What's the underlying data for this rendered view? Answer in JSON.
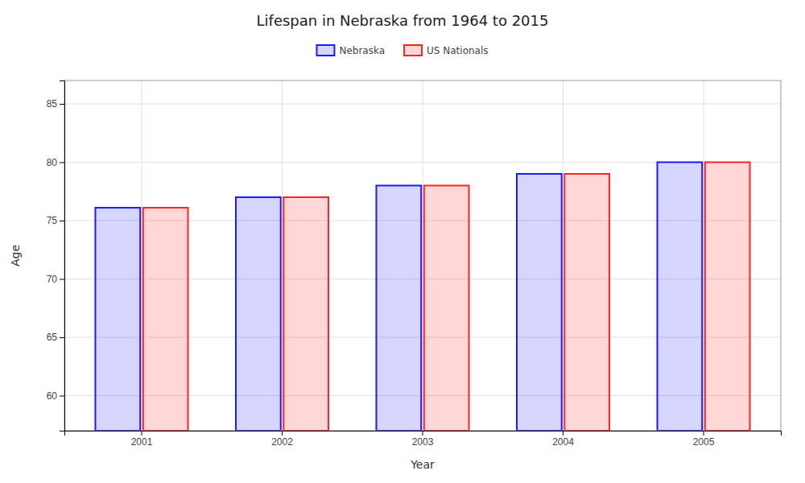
{
  "chart_data": {
    "type": "bar",
    "title": "Lifespan in Nebraska from 1964 to 2015",
    "xlabel": "Year",
    "ylabel": "Age",
    "categories": [
      "2001",
      "2002",
      "2003",
      "2004",
      "2005"
    ],
    "series": [
      {
        "name": "Nebraska",
        "color": "#1a1aff",
        "values": [
          76.1,
          77.0,
          78.0,
          79.0,
          80.0
        ]
      },
      {
        "name": "US Nationals",
        "color": "#ff2222",
        "values": [
          76.1,
          77.0,
          78.0,
          79.0,
          80.0
        ]
      }
    ],
    "ylim": [
      57,
      87
    ],
    "yticks": [
      60,
      65,
      70,
      75,
      80,
      85
    ],
    "grid": true,
    "legend": "top"
  }
}
